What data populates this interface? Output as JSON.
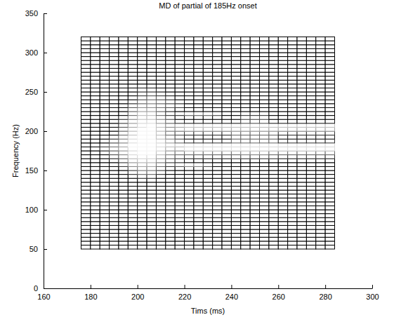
{
  "chart_data": {
    "type": "heatmap",
    "title": "MD of partial of 185Hz onset",
    "x_label": "Tims (ms)",
    "y_label": "Frequency (Hz)",
    "xlim": [
      160,
      300
    ],
    "xticks": [
      160,
      180,
      200,
      220,
      240,
      260,
      280,
      300
    ],
    "ylim": [
      0,
      350
    ],
    "yticks": [
      0,
      50,
      100,
      150,
      200,
      250,
      300,
      350
    ],
    "x": [
      178,
      182,
      186,
      190,
      194,
      198,
      202,
      206,
      210,
      214,
      218,
      222,
      226,
      230,
      234,
      238,
      242,
      246,
      250,
      254,
      258,
      262,
      266,
      270,
      274,
      278,
      282
    ],
    "y": [
      52.5,
      57.5,
      62.5,
      67.5,
      72.5,
      77.5,
      82.5,
      87.5,
      92.5,
      97.5,
      102.5,
      107.5,
      112.5,
      117.5,
      122.5,
      127.5,
      132.5,
      137.5,
      142.5,
      147.5,
      152.5,
      157.5,
      162.5,
      167.5,
      172.5,
      177.5,
      182.5,
      187.5,
      192.5,
      197.5,
      202.5,
      207.5,
      212.5,
      217.5,
      222.5,
      227.5,
      232.5,
      237.5,
      242.5,
      247.5,
      252.5,
      257.5,
      262.5,
      267.5,
      272.5,
      277.5,
      282.5,
      287.5,
      292.5,
      297.5,
      302.5,
      307.5,
      312.5,
      317.5
    ],
    "zlim": [
      0,
      9
    ],
    "z": [
      [
        0,
        0,
        0,
        0,
        0,
        0,
        0,
        0,
        0,
        0,
        0,
        0,
        0,
        0,
        0,
        0,
        0,
        0,
        0,
        0,
        0,
        0,
        0,
        0,
        0,
        0,
        0
      ],
      [
        0,
        0,
        0,
        0,
        0,
        0,
        0,
        0,
        0,
        0,
        0,
        0,
        0,
        0,
        0,
        0,
        0,
        0,
        0,
        0,
        0,
        0,
        0,
        0,
        0,
        0,
        0
      ],
      [
        0,
        0,
        0,
        0,
        0,
        0,
        0,
        0,
        0,
        0,
        0,
        0,
        0,
        0,
        0,
        0,
        0,
        0,
        0,
        0,
        0,
        0,
        0,
        0,
        0,
        0,
        0
      ],
      [
        0,
        0,
        0,
        0,
        0,
        0,
        0,
        0,
        0,
        0,
        0,
        0,
        0,
        0,
        0,
        0,
        0,
        0,
        0,
        0,
        0,
        0,
        0,
        0,
        0,
        0,
        0
      ],
      [
        0,
        0,
        0,
        0,
        0,
        0,
        0,
        0,
        0,
        0,
        0,
        0,
        0,
        0,
        0,
        0,
        0,
        0,
        0,
        0,
        0,
        0,
        0,
        0,
        0,
        0,
        0
      ],
      [
        0,
        0,
        0,
        0,
        0,
        0,
        0,
        0,
        0,
        0,
        0,
        0,
        0,
        0,
        0,
        0,
        0,
        0,
        0,
        0,
        0,
        0,
        0,
        0,
        0,
        0,
        0
      ],
      [
        0,
        0,
        0,
        0,
        0,
        0,
        0,
        0,
        0,
        0,
        0,
        0,
        0,
        0,
        0,
        0,
        0,
        0,
        0,
        0,
        0,
        0,
        0,
        0,
        0,
        0,
        0
      ],
      [
        0,
        0,
        0,
        0,
        0,
        0,
        0,
        0,
        0,
        0,
        0,
        0,
        0,
        0,
        0,
        0,
        0,
        0,
        0,
        0,
        0,
        0,
        0,
        0,
        0,
        0,
        0
      ],
      [
        0,
        0,
        0,
        0,
        0,
        0,
        0,
        0,
        0,
        0,
        0,
        0,
        0,
        0,
        0,
        0,
        0,
        0,
        0,
        0,
        0,
        0,
        0,
        0,
        0,
        0,
        0
      ],
      [
        0,
        0,
        0,
        0,
        0,
        0,
        0,
        0,
        0,
        0,
        0,
        0,
        0,
        0,
        0,
        0,
        0,
        0,
        0,
        0,
        0,
        0,
        0,
        0,
        0,
        0,
        0
      ],
      [
        0,
        0,
        0,
        0,
        0,
        0,
        0,
        0,
        0,
        0,
        0,
        0,
        0,
        0,
        0,
        0,
        0,
        0,
        0,
        0,
        0,
        0,
        0,
        0,
        0,
        0,
        0
      ],
      [
        0,
        0,
        0,
        0,
        0,
        0,
        0,
        0,
        0,
        0,
        0,
        0,
        0,
        0,
        0,
        0,
        0,
        0,
        0,
        0,
        0,
        0,
        0,
        0,
        0,
        0,
        0
      ],
      [
        0,
        0,
        0,
        0,
        0,
        0,
        0,
        0,
        0,
        0,
        0,
        0,
        0,
        0,
        0,
        0,
        0,
        0,
        0,
        0,
        0,
        0,
        0,
        0,
        0,
        0,
        0
      ],
      [
        0,
        0,
        0,
        0,
        0,
        0,
        0,
        0,
        0,
        0,
        0,
        0,
        0,
        0,
        0,
        0,
        0,
        0,
        0,
        0,
        0,
        0,
        0,
        0,
        0,
        0,
        0
      ],
      [
        0,
        0,
        0,
        0,
        0,
        0,
        0,
        0,
        0,
        0,
        0,
        0,
        0,
        0,
        0,
        0,
        0,
        0,
        0,
        0,
        0,
        0,
        0,
        0,
        0,
        0,
        0
      ],
      [
        0,
        0,
        0,
        0,
        0,
        0,
        0,
        0,
        0,
        0,
        0,
        0,
        0,
        0,
        0,
        0,
        0,
        0,
        0,
        0,
        0,
        0,
        0,
        0,
        0,
        0,
        0
      ],
      [
        0,
        0,
        0,
        0,
        0,
        0,
        0,
        0,
        0,
        0,
        0,
        0,
        0,
        0,
        0,
        0,
        0,
        0,
        0,
        0,
        0,
        0,
        0,
        0,
        0,
        0,
        0
      ],
      [
        0,
        0,
        0,
        0,
        0,
        0,
        0,
        0,
        0,
        0,
        0,
        0,
        0,
        0,
        0,
        0,
        0,
        0,
        0,
        0,
        0,
        0,
        0,
        0,
        0,
        0,
        0
      ],
      [
        0,
        0,
        0,
        0,
        0,
        0,
        2,
        2,
        0,
        0,
        0,
        0,
        0,
        0,
        0,
        0,
        0,
        0,
        0,
        0,
        0,
        0,
        0,
        0,
        0,
        0,
        0
      ],
      [
        0,
        0,
        0,
        0,
        0,
        2,
        4,
        4,
        2,
        0,
        0,
        0,
        0,
        0,
        0,
        0,
        0,
        0,
        0,
        0,
        0,
        0,
        0,
        0,
        0,
        0,
        0
      ],
      [
        0,
        0,
        0,
        0,
        0,
        3,
        5,
        5,
        3,
        1,
        0,
        0,
        0,
        0,
        0,
        0,
        0,
        0,
        0,
        0,
        0,
        0,
        0,
        0,
        0,
        0,
        0
      ],
      [
        0,
        0,
        0,
        0,
        2,
        5,
        6,
        6,
        4,
        2,
        3,
        5,
        5,
        3,
        0,
        0,
        0,
        0,
        0,
        0,
        0,
        0,
        0,
        0,
        0,
        0,
        0
      ],
      [
        0,
        0,
        0,
        0,
        3,
        6,
        7,
        7,
        5,
        3,
        2,
        0,
        0,
        0,
        0,
        0,
        0,
        0,
        0,
        0,
        0,
        0,
        0,
        0,
        0,
        0,
        0
      ],
      [
        0,
        0,
        0,
        2,
        4,
        7,
        8,
        8,
        6,
        4,
        3,
        2,
        2,
        2,
        2,
        2,
        3,
        3,
        3,
        3,
        3,
        2,
        2,
        2,
        2,
        2,
        2
      ],
      [
        0,
        0,
        0,
        3,
        5,
        8,
        9,
        9,
        7,
        5,
        4,
        4,
        4,
        4,
        4,
        4,
        4,
        5,
        5,
        5,
        4,
        4,
        4,
        4,
        4,
        4,
        4
      ],
      [
        0,
        0,
        2,
        4,
        6,
        8,
        9,
        9,
        8,
        6,
        6,
        8,
        8,
        8,
        8,
        8,
        8,
        8,
        8,
        8,
        8,
        8,
        8,
        8,
        8,
        8,
        8
      ],
      [
        0,
        0,
        2,
        4,
        6,
        9,
        9,
        9,
        8,
        7,
        7,
        8,
        8,
        8,
        8,
        8,
        8,
        8,
        8,
        8,
        8,
        8,
        8,
        8,
        8,
        8,
        8
      ],
      [
        0,
        0,
        0,
        3,
        5,
        8,
        9,
        9,
        8,
        6,
        4,
        2,
        2,
        2,
        2,
        2,
        4,
        4,
        4,
        4,
        4,
        2,
        2,
        2,
        2,
        2,
        2
      ],
      [
        0,
        0,
        0,
        2,
        5,
        8,
        9,
        9,
        7,
        5,
        3,
        1,
        1,
        1,
        1,
        1,
        4,
        4,
        4,
        4,
        4,
        1,
        1,
        1,
        1,
        1,
        1
      ],
      [
        0,
        0,
        0,
        0,
        4,
        7,
        9,
        9,
        7,
        4,
        3,
        2,
        2,
        2,
        2,
        2,
        4,
        4,
        4,
        4,
        4,
        2,
        2,
        2,
        2,
        2,
        2
      ],
      [
        0,
        0,
        0,
        0,
        4,
        7,
        9,
        9,
        7,
        5,
        5,
        6,
        6,
        6,
        6,
        6,
        6,
        6,
        6,
        6,
        6,
        6,
        6,
        6,
        6,
        6,
        6
      ],
      [
        0,
        0,
        0,
        0,
        3,
        6,
        8,
        9,
        7,
        5,
        6,
        7,
        7,
        7,
        7,
        7,
        7,
        7,
        7,
        7,
        7,
        7,
        7,
        7,
        7,
        7,
        7
      ],
      [
        0,
        0,
        0,
        0,
        3,
        6,
        8,
        8,
        6,
        4,
        2,
        1,
        1,
        1,
        1,
        1,
        1,
        3,
        3,
        3,
        1,
        1,
        1,
        1,
        1,
        1,
        1
      ],
      [
        0,
        0,
        0,
        0,
        2,
        5,
        7,
        7,
        5,
        3,
        0,
        0,
        0,
        0,
        0,
        0,
        0,
        3,
        3,
        3,
        0,
        0,
        0,
        0,
        0,
        0,
        0
      ],
      [
        0,
        0,
        0,
        0,
        0,
        4,
        7,
        7,
        4,
        2,
        2,
        4,
        4,
        4,
        3,
        0,
        0,
        2,
        2,
        2,
        0,
        0,
        0,
        0,
        0,
        0,
        0
      ],
      [
        0,
        0,
        0,
        0,
        0,
        4,
        6,
        6,
        4,
        2,
        0,
        0,
        0,
        0,
        0,
        0,
        0,
        0,
        0,
        0,
        0,
        0,
        0,
        0,
        0,
        0,
        0
      ],
      [
        0,
        0,
        0,
        0,
        0,
        3,
        5,
        5,
        4,
        3,
        2,
        0,
        0,
        0,
        0,
        0,
        0,
        0,
        0,
        0,
        0,
        0,
        0,
        0,
        0,
        0,
        0
      ],
      [
        0,
        0,
        0,
        0,
        0,
        2,
        4,
        5,
        4,
        3,
        2,
        0,
        0,
        0,
        0,
        0,
        0,
        0,
        0,
        0,
        0,
        0,
        0,
        0,
        0,
        0,
        0
      ],
      [
        0,
        0,
        0,
        0,
        0,
        0,
        3,
        4,
        3,
        2,
        0,
        0,
        0,
        0,
        0,
        0,
        0,
        0,
        0,
        0,
        0,
        0,
        0,
        0,
        0,
        0,
        0
      ],
      [
        0,
        0,
        0,
        0,
        0,
        0,
        2,
        3,
        2,
        1,
        0,
        0,
        0,
        0,
        0,
        0,
        0,
        0,
        0,
        0,
        0,
        0,
        0,
        0,
        0,
        0,
        0
      ],
      [
        0,
        0,
        0,
        0,
        0,
        0,
        2,
        2,
        1,
        0,
        0,
        0,
        0,
        0,
        0,
        0,
        0,
        0,
        0,
        0,
        0,
        0,
        0,
        0,
        0,
        0,
        0
      ],
      [
        0,
        0,
        0,
        0,
        0,
        0,
        1,
        1,
        0,
        0,
        0,
        0,
        0,
        0,
        0,
        0,
        0,
        0,
        0,
        0,
        0,
        0,
        0,
        0,
        0,
        0,
        0
      ],
      [
        0,
        0,
        0,
        0,
        0,
        0,
        0,
        0,
        0,
        0,
        0,
        0,
        0,
        0,
        0,
        0,
        0,
        0,
        0,
        0,
        0,
        0,
        0,
        0,
        0,
        0,
        0
      ],
      [
        0,
        0,
        0,
        0,
        0,
        0,
        0,
        0,
        0,
        0,
        0,
        0,
        0,
        0,
        0,
        0,
        0,
        0,
        0,
        0,
        0,
        0,
        0,
        0,
        0,
        0,
        0
      ],
      [
        0,
        0,
        0,
        0,
        0,
        0,
        0,
        0,
        0,
        0,
        0,
        0,
        0,
        0,
        0,
        0,
        0,
        0,
        0,
        0,
        0,
        0,
        0,
        0,
        0,
        0,
        0
      ],
      [
        0,
        0,
        0,
        0,
        0,
        0,
        0,
        0,
        0,
        0,
        0,
        0,
        0,
        0,
        0,
        0,
        0,
        0,
        0,
        0,
        0,
        0,
        0,
        0,
        0,
        0,
        0
      ],
      [
        0,
        0,
        0,
        0,
        0,
        0,
        0,
        0,
        0,
        0,
        0,
        0,
        0,
        0,
        0,
        0,
        0,
        0,
        0,
        0,
        0,
        0,
        0,
        0,
        0,
        0,
        0
      ],
      [
        0,
        0,
        0,
        0,
        0,
        0,
        0,
        0,
        0,
        0,
        0,
        0,
        0,
        0,
        0,
        0,
        0,
        0,
        0,
        0,
        0,
        0,
        0,
        0,
        0,
        0,
        0
      ],
      [
        0,
        0,
        0,
        0,
        0,
        0,
        0,
        0,
        0,
        0,
        0,
        0,
        0,
        0,
        0,
        0,
        0,
        0,
        0,
        0,
        0,
        0,
        0,
        0,
        0,
        0,
        0
      ],
      [
        0,
        0,
        0,
        0,
        0,
        0,
        0,
        0,
        0,
        0,
        0,
        0,
        0,
        0,
        0,
        0,
        0,
        0,
        0,
        0,
        0,
        0,
        0,
        0,
        0,
        0,
        0
      ],
      [
        0,
        0,
        0,
        0,
        0,
        0,
        0,
        0,
        0,
        0,
        0,
        0,
        0,
        0,
        0,
        0,
        0,
        0,
        0,
        0,
        0,
        0,
        0,
        0,
        0,
        0,
        0
      ],
      [
        0,
        0,
        0,
        0,
        0,
        0,
        0,
        0,
        0,
        0,
        0,
        0,
        0,
        0,
        0,
        0,
        0,
        0,
        0,
        0,
        0,
        0,
        0,
        0,
        0,
        0,
        0
      ],
      [
        0,
        0,
        0,
        0,
        0,
        0,
        0,
        0,
        0,
        0,
        0,
        0,
        0,
        0,
        0,
        0,
        0,
        0,
        0,
        0,
        0,
        0,
        0,
        0,
        0,
        0,
        0
      ],
      [
        0,
        0,
        0,
        0,
        0,
        0,
        0,
        0,
        0,
        0,
        0,
        0,
        0,
        0,
        0,
        0,
        0,
        0,
        0,
        0,
        0,
        0,
        0,
        0,
        0,
        0,
        0
      ]
    ]
  }
}
